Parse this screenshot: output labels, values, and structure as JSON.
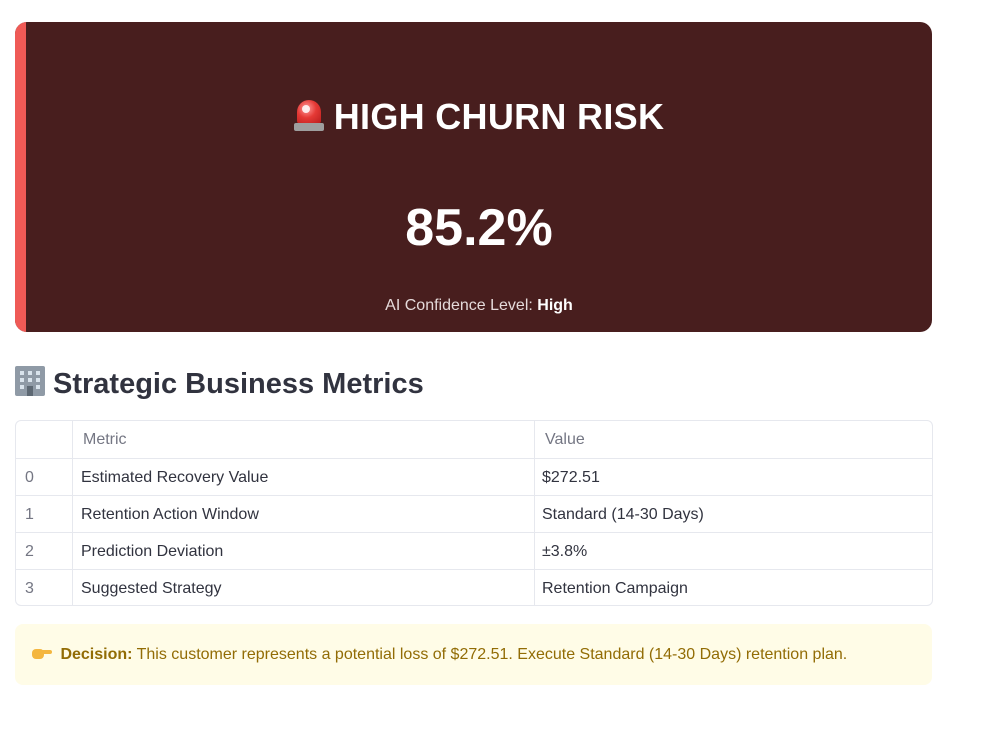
{
  "risk_card": {
    "title": "HIGH CHURN RISK",
    "icon": "siren-icon",
    "percentage": "85.2%",
    "confidence_label": "AI Confidence Level:",
    "confidence_value": "High",
    "background_color": "#481e1e",
    "accent_color": "#ef5a56"
  },
  "metrics_section": {
    "title": "Strategic Business Metrics",
    "icon": "office-building-icon"
  },
  "table": {
    "columns": [
      "",
      "Metric",
      "Value"
    ],
    "rows": [
      {
        "index": "0",
        "metric": "Estimated Recovery Value",
        "value": "$272.51"
      },
      {
        "index": "1",
        "metric": "Retention Action Window",
        "value": "Standard (14-30 Days)"
      },
      {
        "index": "2",
        "metric": "Prediction Deviation",
        "value": "±3.8%"
      },
      {
        "index": "3",
        "metric": "Suggested Strategy",
        "value": "Retention Campaign"
      }
    ]
  },
  "decision": {
    "icon": "pointing-hand-icon",
    "label": "Decision:",
    "text": "This customer represents a potential loss of $272.51. Execute Standard (14-30 Days) retention plan.",
    "background_color": "#fffce7",
    "text_color": "#926c05"
  }
}
